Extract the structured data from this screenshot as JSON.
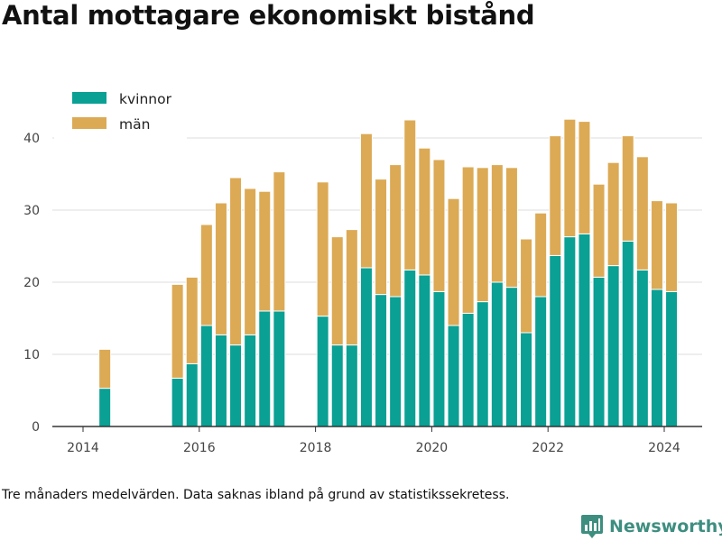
{
  "title": "Antal mottagare ekonomiskt bistånd",
  "footnote": "Tre månaders medelvärden. Data saknas ibland på grund av statistikssekretess.",
  "brand": {
    "name": "Newsworthy",
    "icon": "bar-chart-logo-icon",
    "color": "#3e8e80"
  },
  "colors": {
    "kvinnor": "#0aa094",
    "man": "#dcaa55",
    "grid": "#dddddd",
    "axis": "#333333"
  },
  "chart_data": {
    "type": "bar",
    "stacked": true,
    "title": "Antal mottagare ekonomiskt bistånd",
    "xlabel": "",
    "ylabel": "",
    "ylim": [
      0,
      45
    ],
    "yticks": [
      0,
      10,
      20,
      30,
      40
    ],
    "xticks": [
      "2014",
      "2016",
      "2018",
      "2020",
      "2022",
      "2024"
    ],
    "grid": true,
    "legend_position": "top-left",
    "categories": [
      "2014-05",
      "2015-08",
      "2015-11",
      "2016-02",
      "2016-05",
      "2016-08",
      "2016-11",
      "2017-02",
      "2017-05",
      "2018-02",
      "2018-05",
      "2018-08",
      "2018-11",
      "2019-02",
      "2019-05",
      "2019-08",
      "2019-11",
      "2020-02",
      "2020-05",
      "2020-08",
      "2020-11",
      "2021-02",
      "2021-05",
      "2021-08",
      "2021-11",
      "2022-02",
      "2022-05",
      "2022-08",
      "2022-11",
      "2023-02",
      "2023-05",
      "2023-08",
      "2023-11",
      "2024-02"
    ],
    "series": [
      {
        "name": "kvinnor",
        "color": "#0aa094",
        "values": [
          5.3,
          6.7,
          8.7,
          14,
          12.7,
          11.3,
          12.7,
          16,
          16,
          15.3,
          11.3,
          11.3,
          22,
          18.3,
          18,
          21.7,
          21,
          18.7,
          14,
          15.7,
          17.3,
          20,
          19.3,
          13,
          18,
          23.7,
          26.3,
          26.7,
          20.7,
          22.3,
          25.7,
          21.7,
          19,
          18.7
        ]
      },
      {
        "name": "män",
        "color": "#dcaa55",
        "values": [
          5.4,
          13,
          12,
          14,
          18.3,
          23.2,
          20.3,
          16.6,
          19.3,
          18.6,
          15,
          16,
          18.6,
          16,
          18.3,
          20.8,
          17.6,
          18.3,
          17.6,
          20.3,
          18.6,
          16.3,
          16.6,
          13,
          11.6,
          16.6,
          16.3,
          15.6,
          12.9,
          14.3,
          14.6,
          15.7,
          12.3,
          12.3
        ]
      }
    ]
  }
}
